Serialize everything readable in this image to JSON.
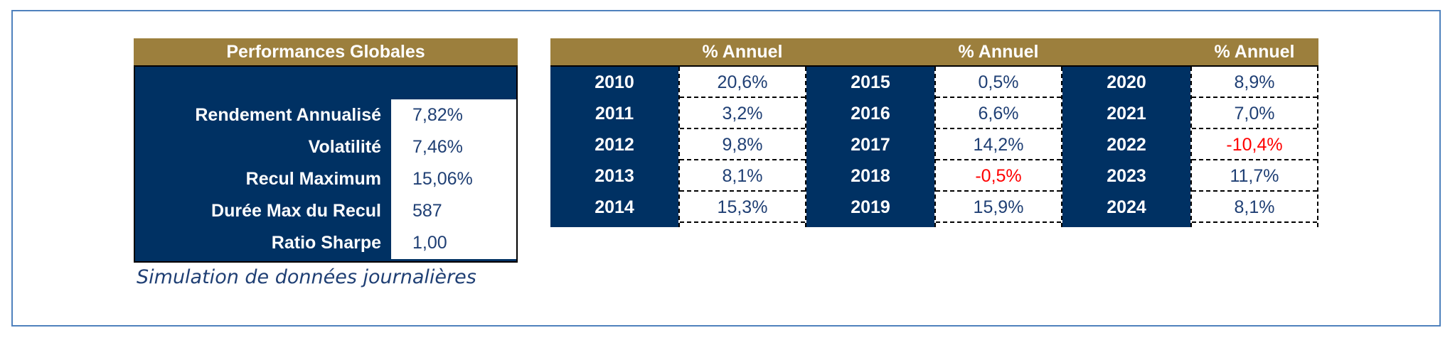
{
  "performance_summary": {
    "title": "Performances Globales",
    "rows": [
      {
        "label": "Rendement Annualisé",
        "value": "7,82%"
      },
      {
        "label": "Volatilité",
        "value": "7,46%"
      },
      {
        "label": "Recul Maximum",
        "value": "15,06%"
      },
      {
        "label": "Durée Max du Recul",
        "value": "587"
      },
      {
        "label": "Ratio Sharpe",
        "value": "1,00"
      }
    ]
  },
  "caption": "Simulation de données journalières",
  "annual_returns": {
    "header_label": "% Annuel",
    "groups": [
      {
        "years": [
          "2010",
          "2011",
          "2012",
          "2013",
          "2014"
        ],
        "values": [
          "20,6%",
          "3,2%",
          "9,8%",
          "8,1%",
          "15,3%"
        ]
      },
      {
        "years": [
          "2015",
          "2016",
          "2017",
          "2018",
          "2019"
        ],
        "values": [
          "0,5%",
          "6,6%",
          "14,2%",
          "-0,5%",
          "15,9%"
        ]
      },
      {
        "years": [
          "2020",
          "2021",
          "2022",
          "2023",
          "2024"
        ],
        "values": [
          "8,9%",
          "7,0%",
          "-10,4%",
          "11,7%",
          "8,1%"
        ]
      }
    ]
  },
  "colors": {
    "header_gold": "#9c7f3d",
    "navy": "#003163",
    "value_text": "#1f3f74",
    "negative_red": "#ff0000",
    "frame_border": "#4f81bd"
  }
}
